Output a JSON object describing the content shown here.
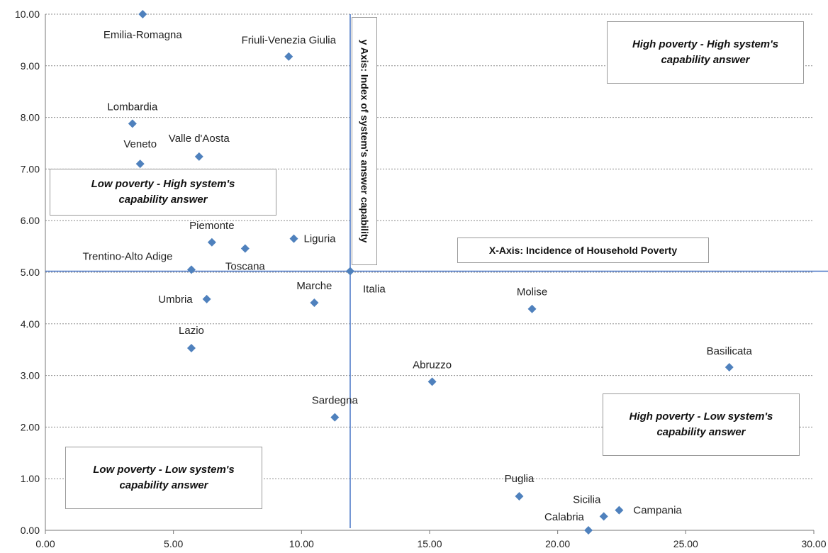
{
  "chart_data": {
    "type": "scatter",
    "title": "",
    "xlabel": "X-Axis: Incidence of Household Poverty",
    "ylabel": "y Axis: Index of system's answer capability",
    "xlim": [
      0,
      30
    ],
    "ylim": [
      0,
      10
    ],
    "x_ticks": [
      "0.00",
      "5.00",
      "10.00",
      "15.00",
      "20.00",
      "25.00",
      "30.00"
    ],
    "y_ticks": [
      "0.00",
      "1.00",
      "2.00",
      "3.00",
      "4.00",
      "5.00",
      "6.00",
      "7.00",
      "8.00",
      "9.00",
      "10.00"
    ],
    "grid": "horizontal dotted",
    "marker_color": "#4f81bd",
    "reference_lines": {
      "x": 11.9,
      "y": 5.02,
      "color": "#4472c4"
    },
    "points": [
      {
        "name": "Emilia-Romagna",
        "x": 3.8,
        "y": 10.0
      },
      {
        "name": "Friuli-Venezia Giulia",
        "x": 9.5,
        "y": 9.18
      },
      {
        "name": "Lombardia",
        "x": 3.4,
        "y": 7.88
      },
      {
        "name": "Valle d'Aosta",
        "x": 6.0,
        "y": 7.24
      },
      {
        "name": "Veneto",
        "x": 3.7,
        "y": 7.1
      },
      {
        "name": "Piemonte",
        "x": 6.5,
        "y": 5.58
      },
      {
        "name": "Toscana",
        "x": 7.8,
        "y": 5.46
      },
      {
        "name": "Liguria",
        "x": 9.7,
        "y": 5.65
      },
      {
        "name": "Trentino-Alto Adige",
        "x": 5.7,
        "y": 5.05
      },
      {
        "name": "Italia",
        "x": 11.9,
        "y": 5.02
      },
      {
        "name": "Umbria",
        "x": 6.3,
        "y": 4.48
      },
      {
        "name": "Marche",
        "x": 10.5,
        "y": 4.41
      },
      {
        "name": "Molise",
        "x": 19.0,
        "y": 4.29
      },
      {
        "name": "Lazio",
        "x": 5.7,
        "y": 3.53
      },
      {
        "name": "Basilicata",
        "x": 26.7,
        "y": 3.16
      },
      {
        "name": "Abruzzo",
        "x": 15.1,
        "y": 2.88
      },
      {
        "name": "Sardegna",
        "x": 11.3,
        "y": 2.19
      },
      {
        "name": "Puglia",
        "x": 18.5,
        "y": 0.66
      },
      {
        "name": "Sicilia",
        "x": 21.8,
        "y": 0.27
      },
      {
        "name": "Campania",
        "x": 22.4,
        "y": 0.39
      },
      {
        "name": "Calabria",
        "x": 21.2,
        "y": 0.0
      }
    ]
  },
  "quadrants": {
    "high_high": {
      "line1": "High poverty  - High system's",
      "line2": "capability answer"
    },
    "low_high": {
      "line1": "Low poverty  - High system's",
      "line2": "capability answer"
    },
    "high_low": {
      "line1": "High poverty  - Low system's",
      "line2": "capability answer"
    },
    "low_low": {
      "line1": "Low poverty  - Low system's",
      "line2": "capability answer"
    }
  }
}
